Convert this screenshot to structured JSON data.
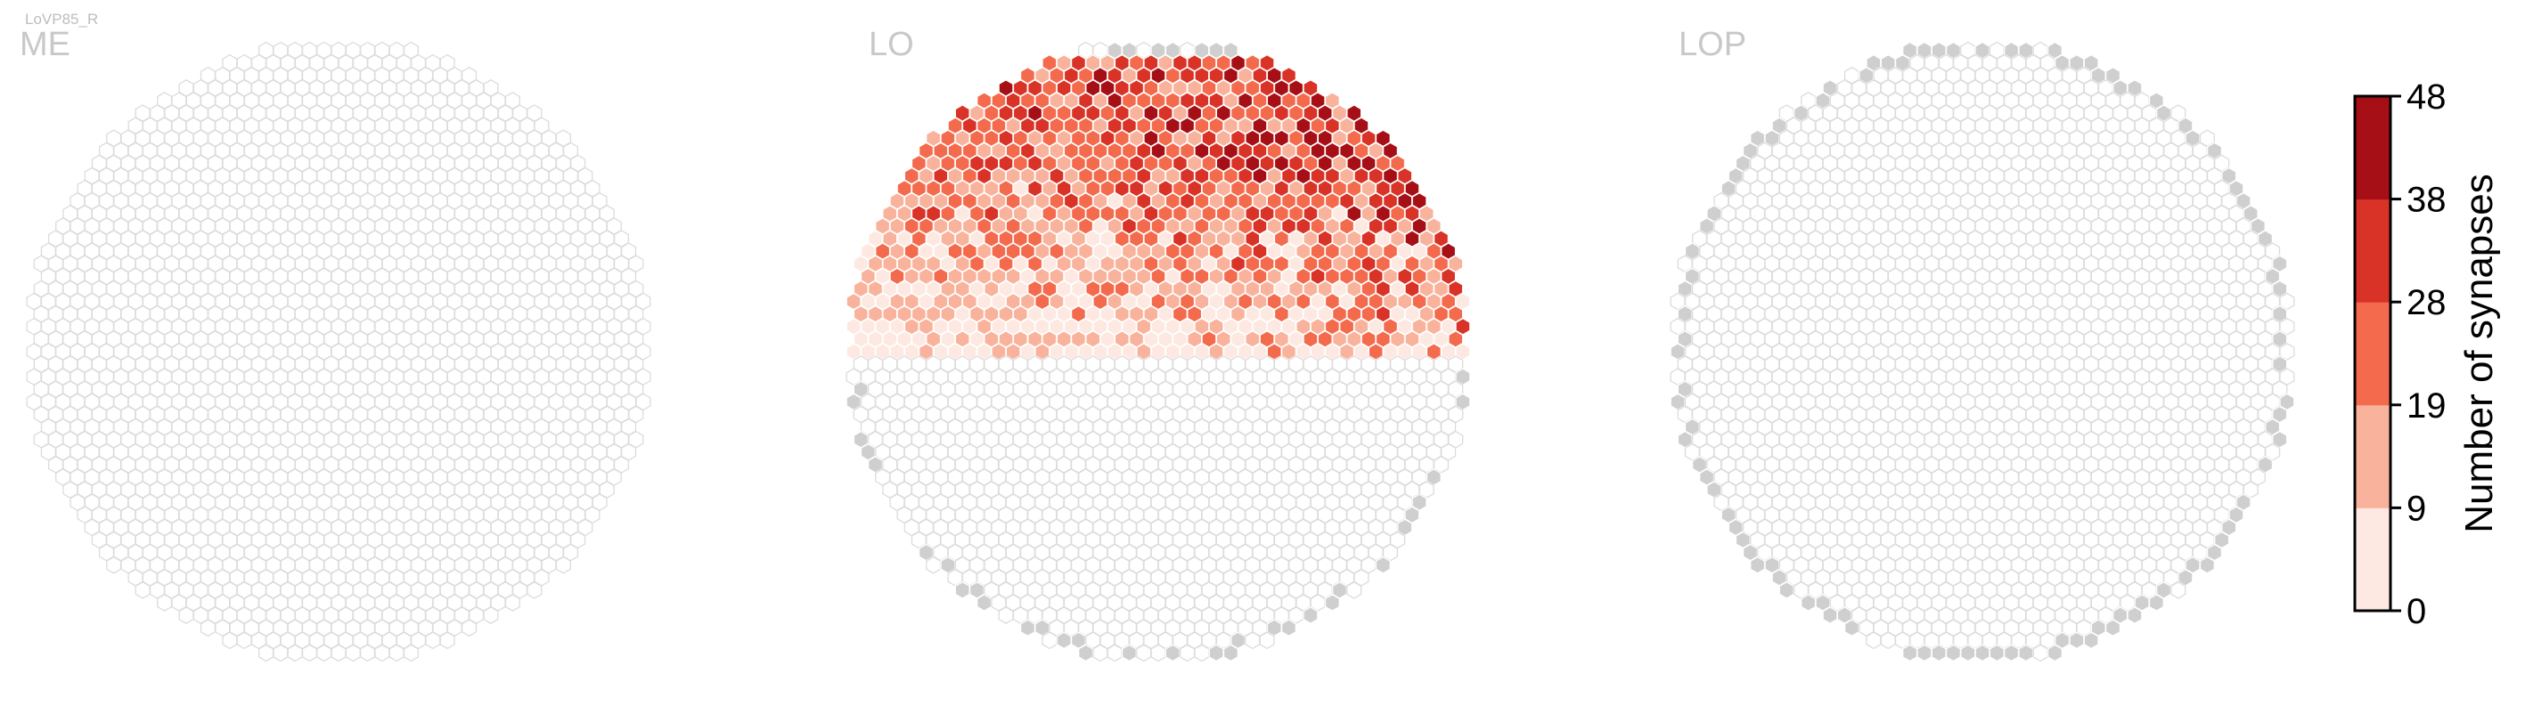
{
  "figure": {
    "small_title": "LoVP85_R"
  },
  "chart_data": {
    "type": "heatmap",
    "title": "LoVP85_R",
    "panels": [
      {
        "name": "ME",
        "cells": "all columns empty (no synapses)"
      },
      {
        "name": "LO",
        "cells": "synapse-count hexagons concentrated in the upper (dorsal) half; values range 0–48"
      },
      {
        "name": "LOP",
        "cells": "all columns empty; grey-filled hexagons mark the outer rim"
      }
    ],
    "colorbar": {
      "label": "Number of synapses",
      "ticks": [
        "0",
        "9",
        "19",
        "28",
        "38",
        "48"
      ],
      "range": [
        0,
        48
      ],
      "colors": [
        "#fde9e1",
        "#f9b39c",
        "#f46a4c",
        "#d93226",
        "#a50f15"
      ]
    },
    "colors": {
      "empty_fill": "#ffffff",
      "empty_stroke": "#dcdcdc",
      "grey_fill": "#cfcfcf",
      "colorbar_border": "#000000"
    }
  }
}
